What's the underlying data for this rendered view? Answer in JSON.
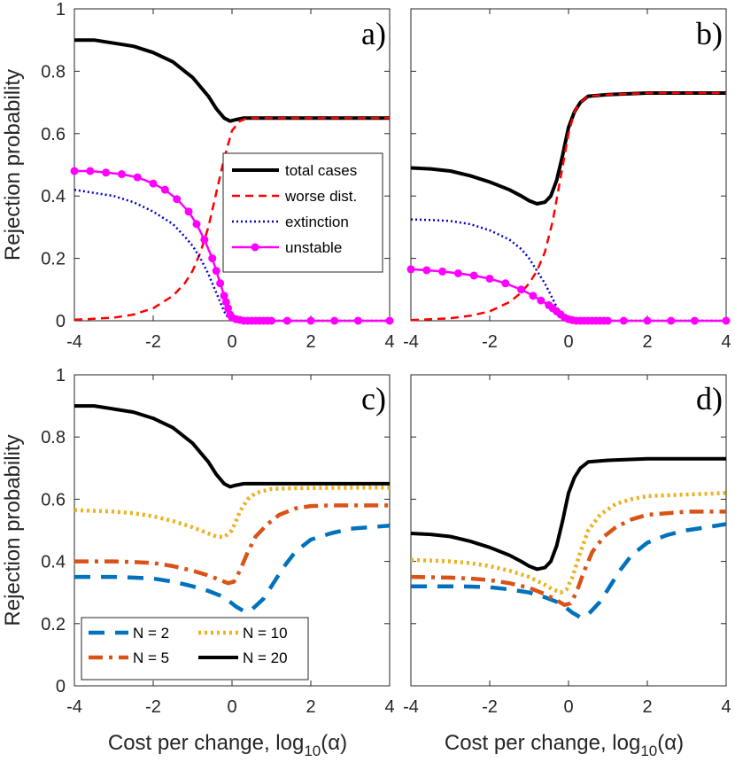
{
  "colors": {
    "black": "#000000",
    "red": "#ff0000",
    "blue": "#0000cc",
    "magenta": "#ff00ff",
    "n2": "#0072bd",
    "n5": "#d95319",
    "n10": "#edb120",
    "n20": "#000000"
  },
  "chart_data": [
    {
      "panel": "a)",
      "type": "line",
      "xlim": [
        -4,
        4
      ],
      "ylim": [
        0,
        1
      ],
      "xticks": [
        "-4",
        "-2",
        "0",
        "2",
        "4"
      ],
      "yticks": [
        "0",
        "0.2",
        "0.4",
        "0.6",
        "0.8",
        "1"
      ],
      "ylabel": "Rejection probability",
      "xlabel": "",
      "legend": {
        "placement": "center-right",
        "entries": [
          "total cases",
          "worse dist.",
          "extinction",
          "unstable"
        ]
      },
      "series": [
        {
          "name": "total cases",
          "style": "solid-thick",
          "color": "black",
          "x": [
            -4,
            -3.5,
            -3,
            -2.5,
            -2,
            -1.5,
            -1.2,
            -1,
            -0.8,
            -0.6,
            -0.4,
            -0.2,
            -0.05,
            0.1,
            0.3,
            0.6,
            1,
            2,
            3,
            4
          ],
          "y": [
            0.9,
            0.9,
            0.89,
            0.88,
            0.86,
            0.83,
            0.8,
            0.78,
            0.75,
            0.72,
            0.68,
            0.65,
            0.64,
            0.645,
            0.65,
            0.65,
            0.65,
            0.65,
            0.65,
            0.65
          ]
        },
        {
          "name": "worse dist.",
          "style": "dashed",
          "color": "red",
          "x": [
            -4,
            -3,
            -2.5,
            -2,
            -1.5,
            -1.2,
            -1,
            -0.8,
            -0.6,
            -0.4,
            -0.2,
            0,
            0.2,
            0.4,
            0.6,
            1,
            2,
            3,
            4
          ],
          "y": [
            0.003,
            0.01,
            0.02,
            0.04,
            0.08,
            0.12,
            0.16,
            0.22,
            0.3,
            0.41,
            0.52,
            0.61,
            0.64,
            0.65,
            0.65,
            0.65,
            0.65,
            0.65,
            0.65
          ]
        },
        {
          "name": "extinction",
          "style": "dotted",
          "color": "blue",
          "x": [
            -4,
            -3.5,
            -3,
            -2.5,
            -2,
            -1.5,
            -1.2,
            -1,
            -0.8,
            -0.6,
            -0.4,
            -0.2,
            -0.1,
            0,
            0.2,
            0.5,
            1,
            4
          ],
          "y": [
            0.42,
            0.41,
            0.4,
            0.38,
            0.35,
            0.31,
            0.27,
            0.24,
            0.2,
            0.15,
            0.09,
            0.03,
            0.01,
            0.003,
            0,
            0,
            0,
            0
          ]
        },
        {
          "name": "unstable",
          "style": "solid-markers",
          "color": "magenta",
          "x": [
            -4,
            -3.6,
            -3.2,
            -2.8,
            -2.4,
            -2,
            -1.7,
            -1.4,
            -1.1,
            -0.9,
            -0.7,
            -0.5,
            -0.4,
            -0.3,
            -0.2,
            -0.15,
            -0.1,
            -0.05,
            0,
            0.1,
            0.2,
            0.3,
            0.4,
            0.5,
            0.6,
            0.7,
            0.8,
            0.9,
            1,
            1.4,
            2,
            2.6,
            3.2,
            4
          ],
          "y": [
            0.48,
            0.48,
            0.475,
            0.47,
            0.46,
            0.44,
            0.42,
            0.39,
            0.35,
            0.31,
            0.26,
            0.2,
            0.16,
            0.12,
            0.08,
            0.06,
            0.04,
            0.02,
            0.01,
            0.005,
            0.003,
            0,
            0,
            0,
            0,
            0,
            0,
            0,
            0,
            0,
            0,
            0,
            0,
            0
          ]
        }
      ]
    },
    {
      "panel": "b)",
      "type": "line",
      "xlim": [
        -4,
        4
      ],
      "ylim": [
        0,
        1
      ],
      "xticks": [
        "-4",
        "-2",
        "0",
        "2",
        "4"
      ],
      "yticks": [],
      "ylabel": "",
      "xlabel": "",
      "series": [
        {
          "name": "total cases",
          "style": "solid-thick",
          "color": "black",
          "x": [
            -4,
            -3.5,
            -3,
            -2.5,
            -2,
            -1.5,
            -1.2,
            -1,
            -0.8,
            -0.6,
            -0.45,
            -0.3,
            -0.15,
            0,
            0.15,
            0.3,
            0.5,
            1,
            2,
            3,
            4
          ],
          "y": [
            0.49,
            0.487,
            0.48,
            0.465,
            0.445,
            0.42,
            0.4,
            0.385,
            0.375,
            0.38,
            0.4,
            0.45,
            0.53,
            0.62,
            0.67,
            0.7,
            0.72,
            0.725,
            0.73,
            0.73,
            0.73
          ]
        },
        {
          "name": "worse dist.",
          "style": "dashed",
          "color": "red",
          "x": [
            -4,
            -3,
            -2.5,
            -2,
            -1.5,
            -1.2,
            -1,
            -0.8,
            -0.6,
            -0.4,
            -0.2,
            0,
            0.15,
            0.3,
            0.5,
            1,
            2,
            3,
            4
          ],
          "y": [
            0.002,
            0.008,
            0.016,
            0.03,
            0.06,
            0.09,
            0.12,
            0.16,
            0.22,
            0.32,
            0.46,
            0.6,
            0.67,
            0.7,
            0.72,
            0.725,
            0.73,
            0.73,
            0.73
          ]
        },
        {
          "name": "extinction",
          "style": "dotted",
          "color": "blue",
          "x": [
            -4,
            -3.5,
            -3,
            -2.5,
            -2,
            -1.5,
            -1.2,
            -1,
            -0.8,
            -0.6,
            -0.4,
            -0.3,
            -0.2,
            -0.1,
            0,
            0.2,
            0.5,
            1,
            4
          ],
          "y": [
            0.325,
            0.323,
            0.32,
            0.31,
            0.29,
            0.26,
            0.23,
            0.2,
            0.16,
            0.12,
            0.07,
            0.045,
            0.02,
            0.008,
            0.002,
            0,
            0,
            0,
            0
          ]
        },
        {
          "name": "unstable",
          "style": "solid-markers",
          "color": "magenta",
          "x": [
            -4,
            -3.6,
            -3.2,
            -2.8,
            -2.4,
            -2,
            -1.6,
            -1.2,
            -0.9,
            -0.7,
            -0.5,
            -0.4,
            -0.3,
            -0.2,
            -0.1,
            0,
            0.1,
            0.2,
            0.3,
            0.4,
            0.5,
            0.6,
            0.7,
            0.8,
            0.9,
            1,
            1.4,
            2,
            2.6,
            3.2,
            4
          ],
          "y": [
            0.165,
            0.162,
            0.158,
            0.152,
            0.145,
            0.135,
            0.12,
            0.1,
            0.08,
            0.065,
            0.05,
            0.04,
            0.03,
            0.02,
            0.01,
            0.005,
            0.002,
            0,
            0,
            0,
            0,
            0,
            0,
            0,
            0,
            0,
            0,
            0,
            0,
            0,
            0
          ]
        }
      ]
    },
    {
      "panel": "c)",
      "type": "line",
      "xlim": [
        -4,
        4
      ],
      "ylim": [
        0,
        1
      ],
      "xticks": [
        "-4",
        "-2",
        "0",
        "2",
        "4"
      ],
      "yticks": [
        "0",
        "0.2",
        "0.4",
        "0.6",
        "0.8",
        "1"
      ],
      "ylabel": "Rejection probability",
      "xlabel": "Cost per change, log",
      "xlabel_sub": "10",
      "xlabel_tail": "(α)",
      "legend": {
        "placement": "bottom-left",
        "entries": [
          "N = 2",
          "N = 5",
          "N = 10",
          "N = 20"
        ]
      },
      "series": [
        {
          "name": "N = 2",
          "style": "dashed-thick",
          "color": "n2",
          "x": [
            -4,
            -3,
            -2.5,
            -2,
            -1.5,
            -1,
            -0.6,
            -0.3,
            -0.1,
            0.1,
            0.3,
            0.5,
            0.8,
            1,
            1.3,
            1.6,
            2,
            2.5,
            3,
            3.5,
            4
          ],
          "y": [
            0.35,
            0.35,
            0.348,
            0.345,
            0.335,
            0.32,
            0.305,
            0.29,
            0.275,
            0.255,
            0.24,
            0.245,
            0.28,
            0.32,
            0.38,
            0.43,
            0.47,
            0.49,
            0.505,
            0.51,
            0.515
          ]
        },
        {
          "name": "N = 5",
          "style": "dashdot-thick",
          "color": "n5",
          "x": [
            -4,
            -3,
            -2.5,
            -2,
            -1.5,
            -1,
            -0.6,
            -0.3,
            -0.1,
            0.05,
            0.2,
            0.4,
            0.6,
            0.9,
            1.2,
            1.6,
            2,
            2.5,
            3,
            4
          ],
          "y": [
            0.4,
            0.4,
            0.398,
            0.395,
            0.385,
            0.37,
            0.355,
            0.34,
            0.33,
            0.335,
            0.37,
            0.43,
            0.48,
            0.52,
            0.55,
            0.57,
            0.578,
            0.58,
            0.58,
            0.58
          ]
        },
        {
          "name": "N = 10",
          "style": "dotted-thick",
          "color": "n10",
          "x": [
            -4,
            -3,
            -2.5,
            -2,
            -1.5,
            -1,
            -0.7,
            -0.4,
            -0.2,
            0,
            0.2,
            0.4,
            0.6,
            1,
            1.5,
            2,
            3,
            4
          ],
          "y": [
            0.565,
            0.56,
            0.555,
            0.545,
            0.53,
            0.51,
            0.495,
            0.48,
            0.478,
            0.5,
            0.56,
            0.6,
            0.62,
            0.633,
            0.635,
            0.636,
            0.637,
            0.637
          ]
        },
        {
          "name": "N = 20",
          "style": "solid-thick",
          "color": "n20",
          "x": [
            -4,
            -3.5,
            -3,
            -2.5,
            -2,
            -1.5,
            -1.2,
            -1,
            -0.8,
            -0.6,
            -0.4,
            -0.2,
            -0.05,
            0.1,
            0.3,
            0.6,
            1,
            2,
            3,
            4
          ],
          "y": [
            0.9,
            0.9,
            0.89,
            0.88,
            0.86,
            0.83,
            0.8,
            0.78,
            0.75,
            0.72,
            0.68,
            0.65,
            0.64,
            0.645,
            0.65,
            0.65,
            0.65,
            0.65,
            0.65,
            0.65
          ]
        }
      ]
    },
    {
      "panel": "d)",
      "type": "line",
      "xlim": [
        -4,
        4
      ],
      "ylim": [
        0,
        1
      ],
      "xticks": [
        "-4",
        "-2",
        "0",
        "2",
        "4"
      ],
      "yticks": [],
      "ylabel": "",
      "xlabel": "Cost per change, log",
      "xlabel_sub": "10",
      "xlabel_tail": "(α)",
      "series": [
        {
          "name": "N = 2",
          "style": "dashed-thick",
          "color": "n2",
          "x": [
            -4,
            -3,
            -2.5,
            -2,
            -1.5,
            -1,
            -0.6,
            -0.3,
            -0.1,
            0.1,
            0.3,
            0.5,
            0.8,
            1,
            1.3,
            1.6,
            2,
            2.5,
            3,
            3.5,
            4
          ],
          "y": [
            0.32,
            0.32,
            0.319,
            0.317,
            0.31,
            0.3,
            0.285,
            0.27,
            0.255,
            0.235,
            0.22,
            0.23,
            0.27,
            0.31,
            0.37,
            0.42,
            0.46,
            0.485,
            0.5,
            0.51,
            0.52
          ]
        },
        {
          "name": "N = 5",
          "style": "dashdot-thick",
          "color": "n5",
          "x": [
            -4,
            -3,
            -2.5,
            -2,
            -1.5,
            -1,
            -0.6,
            -0.3,
            -0.1,
            0.05,
            0.2,
            0.4,
            0.6,
            0.9,
            1.2,
            1.6,
            2,
            2.5,
            3,
            4
          ],
          "y": [
            0.35,
            0.348,
            0.345,
            0.34,
            0.33,
            0.315,
            0.295,
            0.275,
            0.26,
            0.265,
            0.3,
            0.37,
            0.43,
            0.48,
            0.51,
            0.535,
            0.55,
            0.555,
            0.56,
            0.56
          ]
        },
        {
          "name": "N = 10",
          "style": "dotted-thick",
          "color": "n10",
          "x": [
            -4,
            -3,
            -2.5,
            -2,
            -1.5,
            -1,
            -0.6,
            -0.4,
            -0.2,
            -0.05,
            0.1,
            0.3,
            0.5,
            0.8,
            1.2,
            1.6,
            2,
            3,
            4
          ],
          "y": [
            0.405,
            0.4,
            0.395,
            0.385,
            0.37,
            0.35,
            0.325,
            0.31,
            0.3,
            0.31,
            0.35,
            0.43,
            0.5,
            0.55,
            0.585,
            0.6,
            0.61,
            0.615,
            0.62
          ]
        },
        {
          "name": "N = 20",
          "style": "solid-thick",
          "color": "n20",
          "x": [
            -4,
            -3.5,
            -3,
            -2.5,
            -2,
            -1.5,
            -1.2,
            -1,
            -0.8,
            -0.6,
            -0.45,
            -0.3,
            -0.15,
            0,
            0.15,
            0.3,
            0.5,
            1,
            2,
            3,
            4
          ],
          "y": [
            0.49,
            0.487,
            0.48,
            0.465,
            0.445,
            0.42,
            0.4,
            0.385,
            0.375,
            0.38,
            0.4,
            0.45,
            0.53,
            0.62,
            0.67,
            0.7,
            0.72,
            0.725,
            0.73,
            0.73,
            0.73
          ]
        }
      ]
    }
  ]
}
